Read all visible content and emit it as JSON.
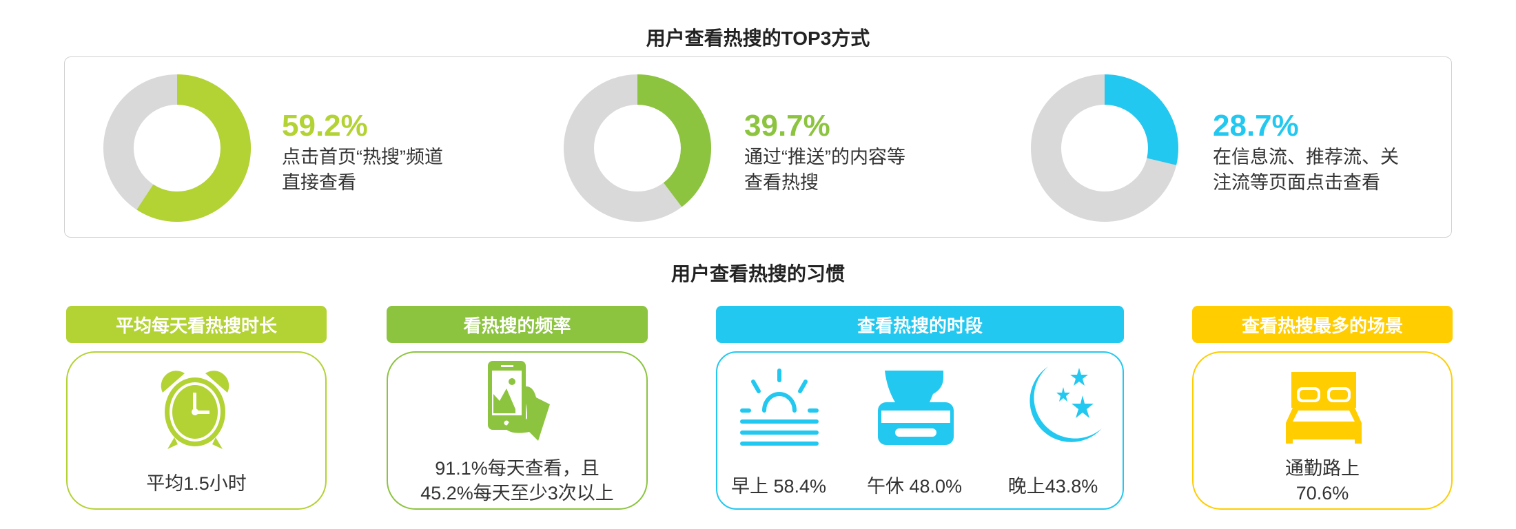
{
  "section1": {
    "title": "用户查看热搜的TOP3方式",
    "items": [
      {
        "percent": "59.2%",
        "value": 59.2,
        "line1": "点击首页“热搜”频道",
        "line2": "直接查看",
        "color": "#b3d234"
      },
      {
        "percent": "39.7%",
        "value": 39.7,
        "line1": "通过“推送”的内容等",
        "line2": "查看热搜",
        "color": "#8cc43f"
      },
      {
        "percent": "28.7%",
        "value": 28.7,
        "line1": "在信息流、推荐流、关",
        "line2": "注流等页面点击查看",
        "color": "#22c8f0"
      }
    ],
    "track_color": "#d9d9d9"
  },
  "section2": {
    "title": "用户查看热搜的习惯",
    "cards": [
      {
        "tag": "平均每天看热搜时长",
        "color": "#b3d234",
        "icon": "alarm-clock-icon",
        "text": "平均1.5小时"
      },
      {
        "tag": "看热搜的频率",
        "color": "#8cc43f",
        "icon": "phone-in-hand-icon",
        "line1": "91.1%每天查看，且",
        "line2": "45.2%每天至少3次以上"
      },
      {
        "tag": "查看热搜的时段",
        "color": "#22c8f0",
        "periods": [
          {
            "icon": "sunrise-icon",
            "label": "早上 58.4%"
          },
          {
            "icon": "coffee-cup-icon",
            "label": "午休 48.0%"
          },
          {
            "icon": "moon-stars-icon",
            "label": "晚上43.8%"
          }
        ]
      },
      {
        "tag": "查看热搜最多的场景",
        "color": "#ffcd00",
        "icon": "bed-icon",
        "line1": "通勤路上",
        "line2": "70.6%"
      }
    ]
  }
}
